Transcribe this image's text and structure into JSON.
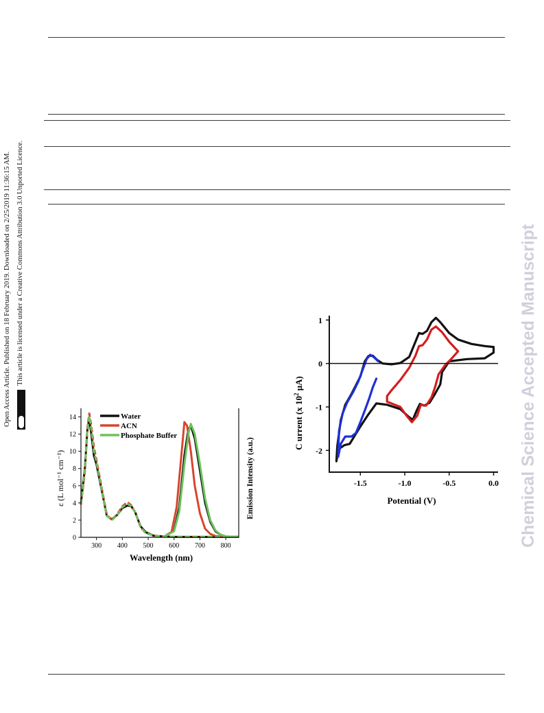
{
  "side_notice": {
    "line1": "Open Access Article. Published on 18 February 2019. Downloaded on 2/25/2019 11:36:15 AM.",
    "line2": "This article is licensed under a Creative Commons Attribution 3.0 Unported Licence.",
    "cc_label": "BY"
  },
  "watermark": "Chemical Science Accepted Manuscript",
  "chart_data": [
    {
      "type": "line",
      "xlabel": "Wavelength (nm)",
      "ylabel": "ε (L mol⁻¹ cm⁻¹)",
      "y2label": "Emission Intensity (a.u.)",
      "xlim": [
        240,
        850
      ],
      "ylim": [
        0,
        15
      ],
      "xticks": [
        300,
        400,
        500,
        600,
        700,
        800
      ],
      "yticks": [
        0,
        2,
        4,
        6,
        8,
        10,
        12,
        14
      ],
      "legend_position": "top-center",
      "series": [
        {
          "name": "Water",
          "color": "#111111",
          "absorption": [
            [
              240,
              4.0
            ],
            [
              255,
              8.0
            ],
            [
              265,
              12.5
            ],
            [
              272,
              13.8
            ],
            [
              280,
              12.0
            ],
            [
              290,
              9.5
            ],
            [
              300,
              8.5
            ],
            [
              320,
              5.5
            ],
            [
              340,
              2.5
            ],
            [
              360,
              2.1
            ],
            [
              380,
              2.6
            ],
            [
              400,
              3.4
            ],
            [
              420,
              3.7
            ],
            [
              435,
              3.6
            ],
            [
              450,
              2.9
            ],
            [
              470,
              1.3
            ],
            [
              490,
              0.6
            ],
            [
              520,
              0.2
            ],
            [
              560,
              0.1
            ],
            [
              600,
              0.05
            ],
            [
              700,
              0.05
            ],
            [
              850,
              0.05
            ]
          ],
          "emission": [
            [
              560,
              0.05
            ],
            [
              600,
              0.8
            ],
            [
              620,
              3.5
            ],
            [
              640,
              9.5
            ],
            [
              655,
              12.5
            ],
            [
              665,
              13.0
            ],
            [
              680,
              11.5
            ],
            [
              700,
              7.8
            ],
            [
              720,
              4.0
            ],
            [
              740,
              1.8
            ],
            [
              760,
              0.7
            ],
            [
              780,
              0.3
            ],
            [
              800,
              0.1
            ],
            [
              850,
              0.05
            ]
          ]
        },
        {
          "name": "ACN",
          "color": "#d9442c",
          "absorption": [
            [
              240,
              3.8
            ],
            [
              255,
              7.5
            ],
            [
              265,
              12.8
            ],
            [
              272,
              14.4
            ],
            [
              280,
              13.0
            ],
            [
              290,
              10.5
            ],
            [
              300,
              9.0
            ],
            [
              320,
              5.8
            ],
            [
              340,
              2.6
            ],
            [
              360,
              2.0
            ],
            [
              380,
              2.7
            ],
            [
              400,
              3.6
            ],
            [
              420,
              4.1
            ],
            [
              435,
              3.7
            ],
            [
              450,
              2.9
            ],
            [
              470,
              1.2
            ],
            [
              490,
              0.5
            ],
            [
              520,
              0.2
            ],
            [
              560,
              0.1
            ],
            [
              600,
              0.05
            ],
            [
              700,
              0.05
            ],
            [
              850,
              0.05
            ]
          ],
          "emission": [
            [
              560,
              0.05
            ],
            [
              590,
              0.6
            ],
            [
              610,
              3.5
            ],
            [
              625,
              8.5
            ],
            [
              640,
              13.4
            ],
            [
              650,
              13.0
            ],
            [
              665,
              10.0
            ],
            [
              680,
              6.0
            ],
            [
              700,
              2.8
            ],
            [
              720,
              1.0
            ],
            [
              740,
              0.4
            ],
            [
              760,
              0.15
            ],
            [
              800,
              0.05
            ],
            [
              850,
              0.05
            ]
          ]
        },
        {
          "name": "Phosphate Buffer",
          "color": "#6cc35c",
          "absorption": [
            [
              240,
              3.9
            ],
            [
              255,
              7.8
            ],
            [
              265,
              12.6
            ],
            [
              272,
              14.1
            ],
            [
              280,
              12.6
            ],
            [
              290,
              10.0
            ],
            [
              300,
              8.8
            ],
            [
              320,
              5.6
            ],
            [
              340,
              2.5
            ],
            [
              360,
              2.0
            ],
            [
              380,
              2.6
            ],
            [
              400,
              3.5
            ],
            [
              420,
              3.9
            ],
            [
              435,
              3.6
            ],
            [
              450,
              2.9
            ],
            [
              470,
              1.2
            ],
            [
              490,
              0.5
            ],
            [
              520,
              0.2
            ],
            [
              560,
              0.1
            ],
            [
              600,
              0.05
            ],
            [
              700,
              0.05
            ],
            [
              850,
              0.05
            ]
          ],
          "emission": [
            [
              560,
              0.05
            ],
            [
              600,
              0.7
            ],
            [
              620,
              3.0
            ],
            [
              640,
              8.5
            ],
            [
              655,
              12.0
            ],
            [
              665,
              13.2
            ],
            [
              680,
              12.0
            ],
            [
              700,
              8.5
            ],
            [
              720,
              4.5
            ],
            [
              740,
              2.0
            ],
            [
              760,
              0.8
            ],
            [
              780,
              0.3
            ],
            [
              800,
              0.1
            ],
            [
              850,
              0.05
            ]
          ]
        }
      ]
    },
    {
      "type": "line",
      "xlabel": "Potential (V)",
      "ylabel_prefix": "C urrent (x 10",
      "ylabel_sup": "2",
      "ylabel_suffix": " μA)",
      "xlim": [
        -1.85,
        0.05
      ],
      "ylim": [
        -2.5,
        1.1
      ],
      "xticks": [
        -1.5,
        -1.0,
        -0.5,
        0.0
      ],
      "xtick_labels": [
        "-1.5",
        "-1.0",
        "-0.5",
        "0.0"
      ],
      "yticks": [
        -2,
        -1,
        0,
        1
      ],
      "ytick_labels": [
        "-2",
        "-1",
        "0",
        "1"
      ],
      "series": [
        {
          "color": "#111111",
          "points": [
            [
              -0.6,
              -0.48
            ],
            [
              -0.66,
              -0.7
            ],
            [
              -0.72,
              -0.9
            ],
            [
              -0.78,
              -0.97
            ],
            [
              -0.83,
              -0.93
            ],
            [
              -0.87,
              -1.1
            ],
            [
              -0.91,
              -1.3
            ],
            [
              -0.96,
              -1.22
            ],
            [
              -1.05,
              -1.05
            ],
            [
              -1.2,
              -0.95
            ],
            [
              -1.32,
              -0.92
            ],
            [
              -1.42,
              -1.2
            ],
            [
              -1.5,
              -1.45
            ],
            [
              -1.56,
              -1.65
            ],
            [
              -1.62,
              -1.85
            ],
            [
              -1.68,
              -1.88
            ],
            [
              -1.73,
              -1.95
            ],
            [
              -1.76,
              -2.1
            ],
            [
              -1.77,
              -2.25
            ],
            [
              -1.76,
              -1.9
            ],
            [
              -1.72,
              -1.3
            ],
            [
              -1.67,
              -0.95
            ],
            [
              -1.6,
              -0.7
            ],
            [
              -1.5,
              -0.3
            ],
            [
              -1.45,
              0.05
            ],
            [
              -1.41,
              0.17
            ],
            [
              -1.36,
              0.18
            ],
            [
              -1.31,
              0.08
            ],
            [
              -1.25,
              0.0
            ],
            [
              -1.15,
              -0.02
            ],
            [
              -1.05,
              0.01
            ],
            [
              -0.95,
              0.15
            ],
            [
              -0.88,
              0.5
            ],
            [
              -0.84,
              0.7
            ],
            [
              -0.8,
              0.68
            ],
            [
              -0.75,
              0.75
            ],
            [
              -0.7,
              0.95
            ],
            [
              -0.65,
              1.05
            ],
            [
              -0.6,
              0.95
            ],
            [
              -0.5,
              0.7
            ],
            [
              -0.4,
              0.55
            ],
            [
              -0.25,
              0.45
            ],
            [
              -0.1,
              0.4
            ],
            [
              0.0,
              0.38
            ],
            [
              0.0,
              0.25
            ],
            [
              -0.1,
              0.12
            ],
            [
              -0.3,
              0.1
            ],
            [
              -0.5,
              0.05
            ],
            [
              -0.58,
              -0.2
            ],
            [
              -0.6,
              -0.48
            ]
          ]
        },
        {
          "color": "#d21e1e",
          "points": [
            [
              -0.4,
              0.28
            ],
            [
              -0.5,
              0.5
            ],
            [
              -0.58,
              0.72
            ],
            [
              -0.65,
              0.85
            ],
            [
              -0.7,
              0.78
            ],
            [
              -0.75,
              0.55
            ],
            [
              -0.8,
              0.42
            ],
            [
              -0.84,
              0.4
            ],
            [
              -0.88,
              0.18
            ],
            [
              -0.95,
              -0.1
            ],
            [
              -1.05,
              -0.38
            ],
            [
              -1.15,
              -0.62
            ],
            [
              -1.2,
              -0.75
            ],
            [
              -1.2,
              -0.88
            ],
            [
              -1.05,
              -1.0
            ],
            [
              -0.98,
              -1.2
            ],
            [
              -0.92,
              -1.35
            ],
            [
              -0.86,
              -1.2
            ],
            [
              -0.82,
              -0.95
            ],
            [
              -0.76,
              -0.97
            ],
            [
              -0.7,
              -0.78
            ],
            [
              -0.66,
              -0.55
            ],
            [
              -0.62,
              -0.25
            ],
            [
              -0.55,
              -0.05
            ],
            [
              -0.47,
              0.12
            ],
            [
              -0.4,
              0.28
            ]
          ]
        },
        {
          "color": "#1f2fd6",
          "points": [
            [
              -1.32,
              -0.35
            ],
            [
              -1.36,
              -0.55
            ],
            [
              -1.4,
              -0.8
            ],
            [
              -1.45,
              -1.08
            ],
            [
              -1.5,
              -1.35
            ],
            [
              -1.55,
              -1.6
            ],
            [
              -1.6,
              -1.68
            ],
            [
              -1.67,
              -1.68
            ],
            [
              -1.72,
              -1.85
            ],
            [
              -1.75,
              -2.15
            ],
            [
              -1.74,
              -1.55
            ],
            [
              -1.7,
              -1.15
            ],
            [
              -1.65,
              -0.9
            ],
            [
              -1.58,
              -0.65
            ],
            [
              -1.52,
              -0.4
            ],
            [
              -1.47,
              -0.12
            ],
            [
              -1.43,
              0.1
            ],
            [
              -1.39,
              0.2
            ],
            [
              -1.35,
              0.15
            ],
            [
              -1.3,
              0.05
            ]
          ]
        }
      ]
    }
  ]
}
